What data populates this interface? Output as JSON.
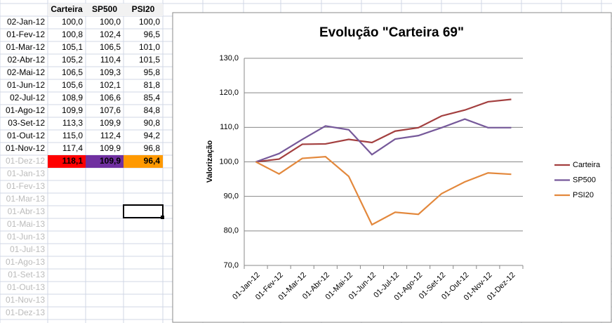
{
  "sheet": {
    "headers": [
      "Carteira",
      "SP500",
      "PSI20"
    ],
    "rows": [
      [
        "02-Jan-12",
        "100,0",
        "100,0",
        "100,0"
      ],
      [
        "01-Fev-12",
        "100,8",
        "102,4",
        "96,5"
      ],
      [
        "01-Mar-12",
        "105,1",
        "106,5",
        "101,0"
      ],
      [
        "02-Abr-12",
        "105,2",
        "110,4",
        "101,5"
      ],
      [
        "02-Mai-12",
        "106,5",
        "109,3",
        "95,8"
      ],
      [
        "01-Jun-12",
        "105,6",
        "102,1",
        "81,8"
      ],
      [
        "02-Jul-12",
        "108,9",
        "106,6",
        "85,4"
      ],
      [
        "01-Ago-12",
        "109,9",
        "107,6",
        "84,8"
      ],
      [
        "03-Set-12",
        "113,3",
        "109,9",
        "90,8"
      ],
      [
        "01-Out-12",
        "115,0",
        "112,4",
        "94,2"
      ],
      [
        "01-Nov-12",
        "117,4",
        "109,9",
        "96,8"
      ],
      [
        "01-Dez-12",
        "118,1",
        "109,9",
        "96,4"
      ]
    ],
    "future_dates": [
      "01-Jan-13",
      "01-Fev-13",
      "01-Mar-13",
      "01-Abr-13",
      "01-Mai-13",
      "01-Jun-13",
      "01-Jul-13",
      "01-Ago-13",
      "01-Set-13",
      "01-Out-13",
      "01-Nov-13",
      "01-Dez-13"
    ]
  },
  "chart_data": {
    "type": "line",
    "title": "Evolução \"Carteira 69\"",
    "y_label": "Valorização",
    "categories": [
      "01-Jan-12",
      "01-Fev-12",
      "01-Mar-12",
      "01-Abr-12",
      "01-Mai-12",
      "01-Jun-12",
      "01-Jul-12",
      "01-Ago-12",
      "01-Set-12",
      "01-Out-12",
      "01-Nov-12",
      "01-Dez-12"
    ],
    "series": [
      {
        "name": "Carteira",
        "color": "#a33f3f",
        "values": [
          100.0,
          100.8,
          105.1,
          105.2,
          106.5,
          105.6,
          108.9,
          109.9,
          113.3,
          115.0,
          117.4,
          118.1
        ]
      },
      {
        "name": "SP500",
        "color": "#76599a",
        "values": [
          100.0,
          102.4,
          106.5,
          110.4,
          109.3,
          102.1,
          106.6,
          107.6,
          109.9,
          112.4,
          109.9,
          109.9
        ]
      },
      {
        "name": "PSI20",
        "color": "#e3883c",
        "values": [
          100.0,
          96.5,
          101.0,
          101.5,
          95.8,
          81.8,
          85.4,
          84.8,
          90.8,
          94.2,
          96.8,
          96.4
        ]
      }
    ],
    "ylim": [
      70,
      130
    ],
    "yticks": [
      {
        "value": 70,
        "label": "70,0"
      },
      {
        "value": 80,
        "label": "80,0"
      },
      {
        "value": 90,
        "label": "90,0"
      },
      {
        "value": 100,
        "label": "100,0"
      },
      {
        "value": 110,
        "label": "110,0"
      },
      {
        "value": 120,
        "label": "120,0"
      },
      {
        "value": 130,
        "label": "130,0"
      }
    ],
    "grid": true,
    "legend": "right"
  }
}
